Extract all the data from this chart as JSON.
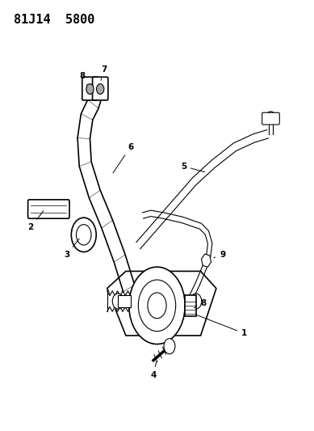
{
  "title_code": "81J14  5800",
  "background_color": "#ffffff",
  "line_color": "#000000",
  "fig_width": 3.89,
  "fig_height": 5.33,
  "dpi": 100,
  "font_size_title": 11
}
